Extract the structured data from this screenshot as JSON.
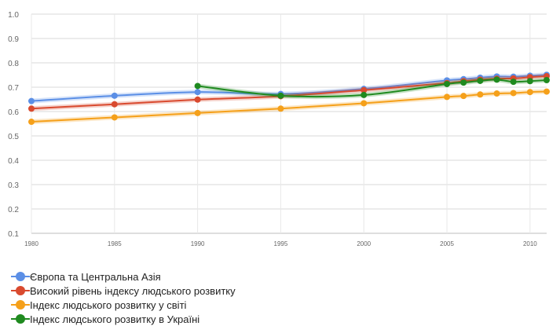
{
  "chart_data": {
    "type": "line",
    "title": "",
    "xlabel": "",
    "ylabel": "",
    "x_ticks": [
      1980,
      1985,
      1990,
      1995,
      2000,
      2005,
      2010
    ],
    "x_tick_labels": [
      "1980",
      "1985",
      "1990",
      "1995",
      "2000",
      "2005",
      "2010"
    ],
    "y_ticks": [
      0.1,
      0.2,
      0.3,
      0.4,
      0.5,
      0.6,
      0.7,
      0.8,
      0.9,
      1.0
    ],
    "y_tick_labels": [
      "0.1",
      "0.2",
      "0.3",
      "0.4",
      "0.5",
      "0.6",
      "0.7",
      "0.8",
      "0.9",
      "1.0"
    ],
    "xlim": [
      1980,
      2011
    ],
    "ylim": [
      0.1,
      1.0
    ],
    "grid": true,
    "legend_position": "bottom-left",
    "series": [
      {
        "name": "Європа та Центральна Азія",
        "color": "#5b8fe6",
        "x": [
          1980,
          1985,
          1990,
          1995,
          2000,
          2005,
          2006,
          2007,
          2008,
          2009,
          2010,
          2011
        ],
        "values": [
          0.643,
          0.665,
          0.68,
          0.672,
          0.693,
          0.728,
          0.733,
          0.739,
          0.744,
          0.743,
          0.747,
          0.751
        ]
      },
      {
        "name": "Високий рівень індексу людського розвитку",
        "color": "#d94a2f",
        "x": [
          1980,
          1985,
          1990,
          1995,
          2000,
          2005,
          2006,
          2007,
          2008,
          2009,
          2010,
          2011
        ],
        "values": [
          0.612,
          0.63,
          0.649,
          0.663,
          0.688,
          0.717,
          0.725,
          0.731,
          0.735,
          0.736,
          0.741,
          0.745
        ]
      },
      {
        "name": "Індекс людського розвитку у світі",
        "color": "#f5a01a",
        "x": [
          1980,
          1985,
          1990,
          1995,
          2000,
          2005,
          2006,
          2007,
          2008,
          2009,
          2010,
          2011
        ],
        "values": [
          0.558,
          0.576,
          0.594,
          0.612,
          0.634,
          0.66,
          0.664,
          0.67,
          0.674,
          0.676,
          0.68,
          0.682
        ]
      },
      {
        "name": "Індекс людського розвитку в Україні",
        "color": "#1f8a1f",
        "x": [
          1990,
          1995,
          2000,
          2005,
          2006,
          2007,
          2008,
          2009,
          2010,
          2011
        ],
        "values": [
          0.705,
          0.665,
          0.668,
          0.713,
          0.719,
          0.726,
          0.731,
          0.722,
          0.725,
          0.729
        ]
      }
    ]
  }
}
